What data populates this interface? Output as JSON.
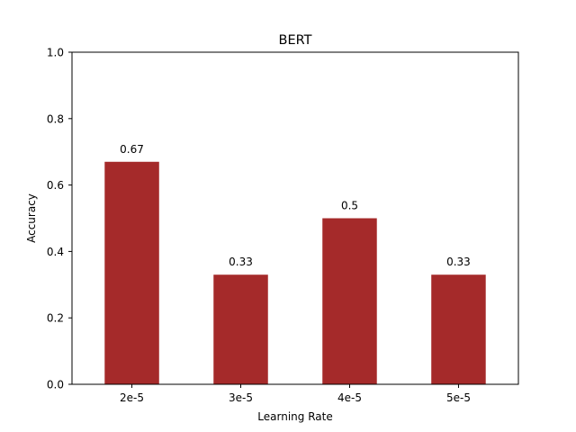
{
  "chart_data": {
    "type": "bar",
    "title": "BERT",
    "xlabel": "Learning Rate",
    "ylabel": "Accuracy",
    "categories": [
      "2e-5",
      "3e-5",
      "4e-5",
      "5e-5"
    ],
    "values": [
      0.67,
      0.33,
      0.5,
      0.33
    ],
    "data_labels": [
      "0.67",
      "0.33",
      "0.5",
      "0.33"
    ],
    "ylim": [
      0,
      1.0
    ],
    "yticks": [
      0.0,
      0.2,
      0.4,
      0.6,
      0.8,
      1.0
    ],
    "ytick_labels": [
      "0.0",
      "0.2",
      "0.4",
      "0.6",
      "0.8",
      "1.0"
    ],
    "bar_color": "#a52a2a",
    "grid": false,
    "legend": "none"
  }
}
